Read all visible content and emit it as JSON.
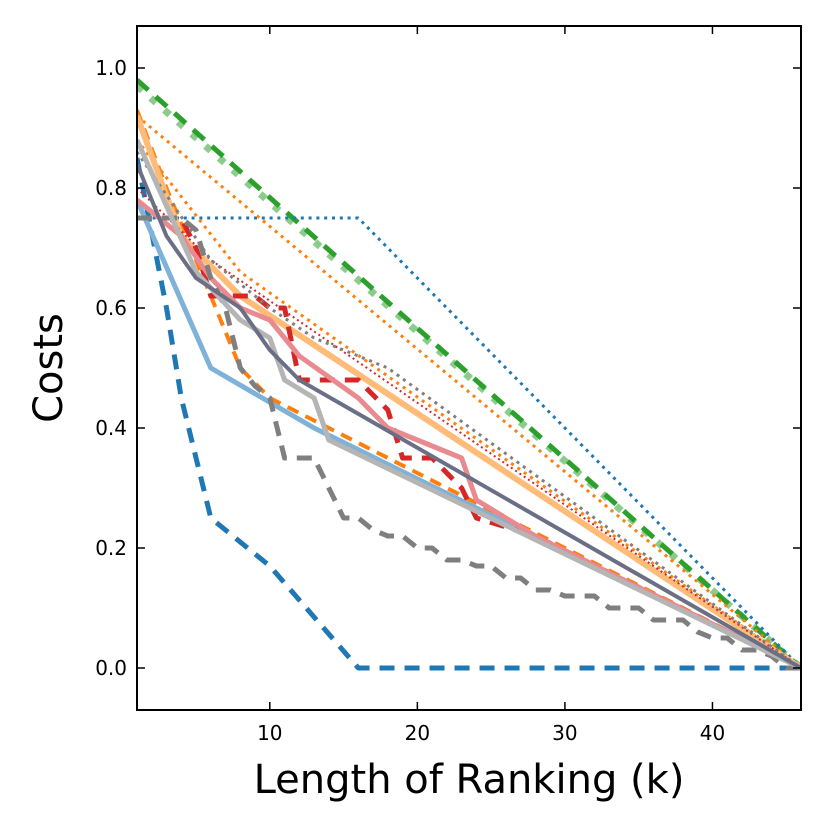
{
  "chart_data": {
    "type": "line",
    "title": "",
    "xlabel": "Length of Ranking (k)",
    "ylabel": "Costs",
    "xlim": [
      1,
      46
    ],
    "ylim": [
      -0.07,
      1.07
    ],
    "xticks": [
      10,
      20,
      30,
      40
    ],
    "xtick_labels": [
      "10",
      "20",
      "30",
      "40"
    ],
    "yticks": [
      0.0,
      0.2,
      0.4,
      0.6,
      0.8,
      1.0
    ],
    "ytick_labels": [
      "0.0",
      "0.2",
      "0.4",
      "0.6",
      "0.8",
      "1.0"
    ],
    "grid": false,
    "legend": "none",
    "series": [
      {
        "name": "green-dashed",
        "color": "#2ca02c",
        "style": "dashed",
        "width": 5,
        "alpha": 1.0,
        "x": [
          1,
          46
        ],
        "y": [
          0.98,
          0.0
        ]
      },
      {
        "name": "green-dotted",
        "color": "#2ca02c",
        "style": "dotted",
        "width": 7,
        "alpha": 0.55,
        "x": [
          1,
          46
        ],
        "y": [
          0.97,
          0.0
        ]
      },
      {
        "name": "blue-dotted",
        "color": "#1f77b4",
        "style": "dotted",
        "width": 3,
        "alpha": 1.0,
        "x": [
          1,
          16,
          46
        ],
        "y": [
          0.75,
          0.75,
          0.0
        ]
      },
      {
        "name": "blue-dashed",
        "color": "#1f77b4",
        "style": "dashed",
        "width": 5,
        "alpha": 1.0,
        "x": [
          1,
          3,
          4,
          6,
          7,
          10,
          16,
          46
        ],
        "y": [
          0.85,
          0.6,
          0.45,
          0.25,
          0.23,
          0.17,
          0.0,
          0.0
        ]
      },
      {
        "name": "lightblue-solid",
        "color": "#7fb2d9",
        "style": "solid",
        "width": 5,
        "alpha": 1.0,
        "x": [
          1,
          6,
          13,
          46
        ],
        "y": [
          0.78,
          0.5,
          0.4,
          0.0
        ]
      },
      {
        "name": "orange-dotted",
        "color": "#ff7f0e",
        "style": "dotted",
        "width": 3,
        "alpha": 1.0,
        "x": [
          1,
          46
        ],
        "y": [
          0.92,
          0.0
        ]
      },
      {
        "name": "orange-dotted-2",
        "color": "#ff7f0e",
        "style": "dotted",
        "width": 3,
        "alpha": 1.0,
        "x": [
          1,
          8,
          46
        ],
        "y": [
          0.88,
          0.66,
          0.0
        ]
      },
      {
        "name": "orange-dashed",
        "color": "#ff7f0e",
        "style": "dashed",
        "width": 4,
        "alpha": 1.0,
        "x": [
          1,
          3,
          6,
          8,
          10,
          46
        ],
        "y": [
          0.93,
          0.8,
          0.62,
          0.5,
          0.45,
          0.0
        ]
      },
      {
        "name": "orange-light-solid",
        "color": "#ffbb78",
        "style": "solid",
        "width": 6,
        "alpha": 1.0,
        "x": [
          1,
          4,
          8,
          46
        ],
        "y": [
          0.92,
          0.72,
          0.62,
          0.0
        ]
      },
      {
        "name": "red-dashed",
        "color": "#d62728",
        "style": "dashed",
        "width": 5,
        "alpha": 1.0,
        "x": [
          1,
          4,
          5,
          6,
          9,
          10,
          11,
          12,
          16,
          18,
          19,
          21,
          23,
          24,
          28,
          46
        ],
        "y": [
          0.75,
          0.75,
          0.7,
          0.62,
          0.62,
          0.6,
          0.6,
          0.48,
          0.48,
          0.43,
          0.35,
          0.35,
          0.3,
          0.25,
          0.22,
          0.0
        ]
      },
      {
        "name": "red-dotted",
        "color": "#d62728",
        "style": "dotted",
        "width": 2,
        "alpha": 1.0,
        "x": [
          1,
          6,
          46
        ],
        "y": [
          0.8,
          0.68,
          0.0
        ]
      },
      {
        "name": "pink-solid",
        "color": "#e88a8f",
        "style": "solid",
        "width": 5,
        "alpha": 1.0,
        "x": [
          1,
          4,
          6,
          8,
          10,
          12,
          16,
          18,
          20,
          23,
          24,
          28,
          46
        ],
        "y": [
          0.78,
          0.72,
          0.65,
          0.6,
          0.58,
          0.52,
          0.45,
          0.4,
          0.38,
          0.35,
          0.28,
          0.22,
          0.0
        ]
      },
      {
        "name": "gray-dashed",
        "color": "#7f7f7f",
        "style": "dashed",
        "width": 5,
        "alpha": 1.0,
        "x": [
          1,
          2,
          3,
          4,
          5,
          6,
          7,
          8,
          9,
          10,
          11,
          12,
          13,
          14,
          15,
          16,
          17,
          18,
          19,
          20,
          21,
          22,
          23,
          24,
          25,
          26,
          27,
          28,
          29,
          30,
          31,
          32,
          33,
          34,
          35,
          36,
          37,
          38,
          39,
          40,
          41,
          42,
          43,
          44,
          45,
          46
        ],
        "y": [
          0.75,
          0.75,
          0.75,
          0.75,
          0.73,
          0.65,
          0.6,
          0.5,
          0.47,
          0.45,
          0.35,
          0.35,
          0.35,
          0.3,
          0.25,
          0.25,
          0.23,
          0.22,
          0.22,
          0.2,
          0.2,
          0.18,
          0.18,
          0.17,
          0.17,
          0.15,
          0.15,
          0.13,
          0.13,
          0.12,
          0.12,
          0.12,
          0.1,
          0.1,
          0.1,
          0.08,
          0.08,
          0.08,
          0.06,
          0.05,
          0.05,
          0.03,
          0.03,
          0.02,
          0.0,
          0.0
        ]
      },
      {
        "name": "gray-dotted",
        "color": "#7f7f7f",
        "style": "dotted",
        "width": 3,
        "alpha": 1.0,
        "x": [
          1,
          6,
          10,
          13,
          18,
          46
        ],
        "y": [
          0.86,
          0.68,
          0.6,
          0.55,
          0.5,
          0.0
        ]
      },
      {
        "name": "lightgray-solid",
        "color": "#b5b5b5",
        "style": "solid",
        "width": 5,
        "alpha": 1.0,
        "x": [
          1,
          5,
          8,
          10,
          11,
          13,
          14,
          46
        ],
        "y": [
          0.88,
          0.66,
          0.58,
          0.55,
          0.48,
          0.45,
          0.38,
          0.0
        ]
      },
      {
        "name": "slate-solid",
        "color": "#6a6f86",
        "style": "solid",
        "width": 4,
        "alpha": 1.0,
        "x": [
          1,
          3,
          5,
          8,
          10,
          12,
          46
        ],
        "y": [
          0.84,
          0.72,
          0.65,
          0.6,
          0.53,
          0.48,
          0.0
        ]
      }
    ]
  }
}
